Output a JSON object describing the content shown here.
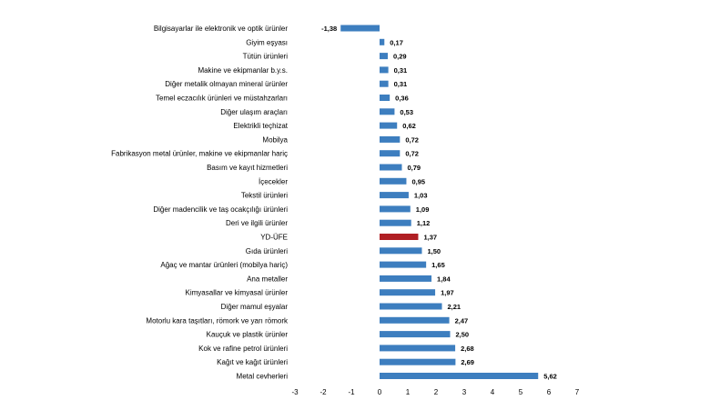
{
  "chart_data": {
    "type": "bar",
    "orientation": "horizontal",
    "title": "",
    "xlabel": "",
    "ylabel": "",
    "xlim": [
      -3,
      7
    ],
    "xticks": [
      "-3",
      "-2",
      "-1",
      "0",
      "1",
      "2",
      "3",
      "4",
      "5",
      "6",
      "7"
    ],
    "grid": false,
    "legend": "none",
    "colors": {
      "bar": "#3d7ebf",
      "highlight": "#b01f24"
    },
    "highlight_category": "YD-ÜFE",
    "categories": [
      "Bilgisayarlar ile elektronik ve optik ürünler",
      "Giyim eşyası",
      "Tütün ürünleri",
      "Makine ve ekipmanlar b.y.s.",
      "Diğer metalik olmayan mineral ürünler",
      "Temel eczacılık ürünleri ve müstahzarları",
      "Diğer ulaşım araçları",
      "Elektrikli teçhizat",
      "Mobilya",
      "Fabrikasyon metal ürünler, makine ve ekipmanlar hariç",
      "Basım ve kayıt hizmetleri",
      "İçecekler",
      "Tekstil ürünleri",
      "Diğer madencilik ve taş ocakçılığı ürünleri",
      "Deri ve ilgili ürünler",
      "YD-ÜFE",
      "Gıda ürünleri",
      "Ağaç ve mantar ürünleri (mobilya hariç)",
      "Ana metaller",
      "Kimyasallar ve kimyasal ürünler",
      "Diğer mamul eşyalar",
      "Motorlu kara taşıtları, römork ve yarı römork",
      "Kauçuk ve plastik ürünler",
      "Kok ve rafine petrol ürünleri",
      "Kağıt ve kağıt ürünleri",
      "Metal cevherleri"
    ],
    "values": [
      -1.38,
      0.17,
      0.29,
      0.31,
      0.31,
      0.36,
      0.53,
      0.62,
      0.72,
      0.72,
      0.79,
      0.95,
      1.03,
      1.09,
      1.12,
      1.37,
      1.5,
      1.65,
      1.84,
      1.97,
      2.21,
      2.47,
      2.5,
      2.68,
      2.69,
      5.62
    ],
    "value_labels": [
      "-1,38",
      "0,17",
      "0,29",
      "0,31",
      "0,31",
      "0,36",
      "0,53",
      "0,62",
      "0,72",
      "0,72",
      "0,79",
      "0,95",
      "1,03",
      "1,09",
      "1,12",
      "1,37",
      "1,50",
      "1,65",
      "1,84",
      "1,97",
      "2,21",
      "2,47",
      "2,50",
      "2,68",
      "2,69",
      "5,62"
    ]
  }
}
